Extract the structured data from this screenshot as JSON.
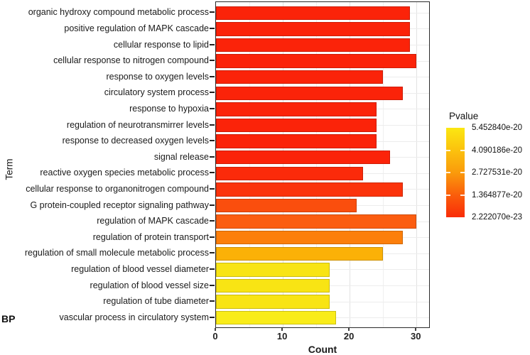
{
  "chart_data": {
    "type": "bar",
    "orientation": "horizontal",
    "title": "",
    "xlabel": "Count",
    "ylabel": "Term",
    "group_label": "BP",
    "xlim": [
      0,
      32.1
    ],
    "x_major_ticks": [
      0,
      10,
      20,
      30
    ],
    "x_minor_ticks": [
      5,
      15,
      25
    ],
    "grid": true,
    "categories": [
      "organic hydroxy compound metabolic process",
      "positive regulation of MAPK cascade",
      "cellular response to lipid",
      "cellular response to nitrogen compound",
      "response to oxygen levels",
      "circulatory system process",
      "response to hypoxia",
      "regulation of neurotransmirrer levels",
      "response to decreased oxygen levels",
      "signal release",
      "reactive oxygen species metabolic process",
      "cellular response to organonitrogen compound",
      "G protein-coupled receptor signaling pathway",
      "regulation of MAPK cascade",
      "regulation of protein transport",
      "regulation of small molecule metabolic process",
      "regulation of blood vessel diameter",
      "regulation of blood vessel size",
      "regulation of tube diameter",
      "vascular process in circulatory system"
    ],
    "values": [
      29,
      29,
      29,
      30,
      25,
      28,
      24,
      24,
      24,
      26,
      22,
      28,
      21,
      30,
      28,
      25,
      17,
      17,
      17,
      18
    ],
    "bar_colors": [
      "#FB2309",
      "#FB2309",
      "#FB2309",
      "#FB2309",
      "#FB2309",
      "#FB2309",
      "#FB2309",
      "#FB2309",
      "#FB2309",
      "#FB2309",
      "#FB2A0A",
      "#FB330B",
      "#FA4E0D",
      "#FB5D10",
      "#FC7F0B",
      "#FBB107",
      "#F8E414",
      "#F8E414",
      "#F8E414",
      "#F9EC19"
    ],
    "colorbar": {
      "title": "Pvalue",
      "tick_labels": [
        "5.452840e-20",
        "4.090186e-20",
        "2.727531e-20",
        "1.364877e-20",
        "2.222070e-23"
      ],
      "gradient_stops": [
        "#FBE712",
        "#FBC20E",
        "#FA9B0C",
        "#FA5E0B",
        "#F92C08"
      ]
    }
  }
}
